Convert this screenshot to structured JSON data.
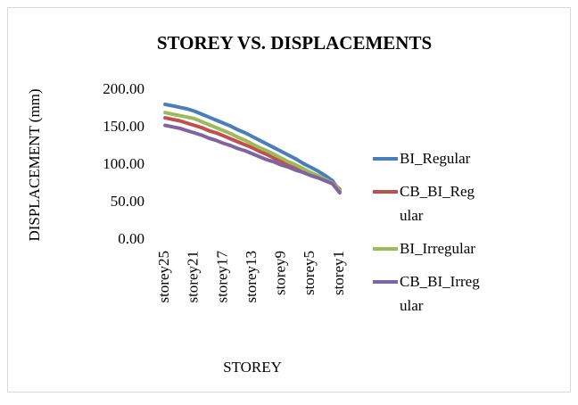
{
  "chart_data": {
    "type": "line",
    "title": "STOREY VS. DISPLACEMENTS",
    "xlabel": "STOREY",
    "ylabel": "DISPLACEMENT (mm)",
    "categories": [
      "storey25",
      null,
      null,
      null,
      "storey21",
      null,
      null,
      null,
      "storey17",
      null,
      null,
      null,
      "storey13",
      null,
      null,
      null,
      "storey9",
      null,
      null,
      null,
      "storey5",
      null,
      null,
      null,
      "storey1"
    ],
    "series": [
      {
        "name": "BI_Regular",
        "color": "#4a7ebb",
        "values": [
          181,
          179,
          177,
          175,
          172,
          168,
          164,
          160,
          156,
          152,
          147,
          143,
          138,
          133,
          128,
          123,
          118,
          113,
          108,
          102,
          97,
          92,
          86,
          79,
          65
        ]
      },
      {
        "name": "CB_BI_Regular",
        "color": "#c0504d",
        "values": [
          163,
          161,
          159,
          156,
          153,
          150,
          146,
          143,
          139,
          135,
          131,
          127,
          123,
          118,
          114,
          109,
          105,
          101,
          96,
          92,
          88,
          84,
          80,
          76,
          68
        ]
      },
      {
        "name": "BI_Irregular",
        "color": "#9bbb59",
        "values": [
          170,
          168,
          166,
          164,
          162,
          158,
          154,
          150,
          146,
          142,
          137,
          133,
          128,
          123,
          119,
          114,
          109,
          104,
          100,
          95,
          90,
          86,
          81,
          76,
          67
        ]
      },
      {
        "name": "CB_BI_Irregular",
        "color": "#8064a2",
        "values": [
          153,
          151,
          149,
          146,
          143,
          140,
          136,
          133,
          129,
          126,
          122,
          119,
          115,
          111,
          107,
          104,
          100,
          97,
          93,
          90,
          86,
          83,
          79,
          75,
          63
        ]
      }
    ],
    "ylim": [
      0,
      200
    ],
    "yticks": [
      {
        "value": 0,
        "label": "0.00"
      },
      {
        "value": 50,
        "label": "50.00"
      },
      {
        "value": 100,
        "label": "100.00"
      },
      {
        "value": 150,
        "label": "150.00"
      },
      {
        "value": 200,
        "label": "200.00"
      }
    ],
    "legend": "right"
  }
}
